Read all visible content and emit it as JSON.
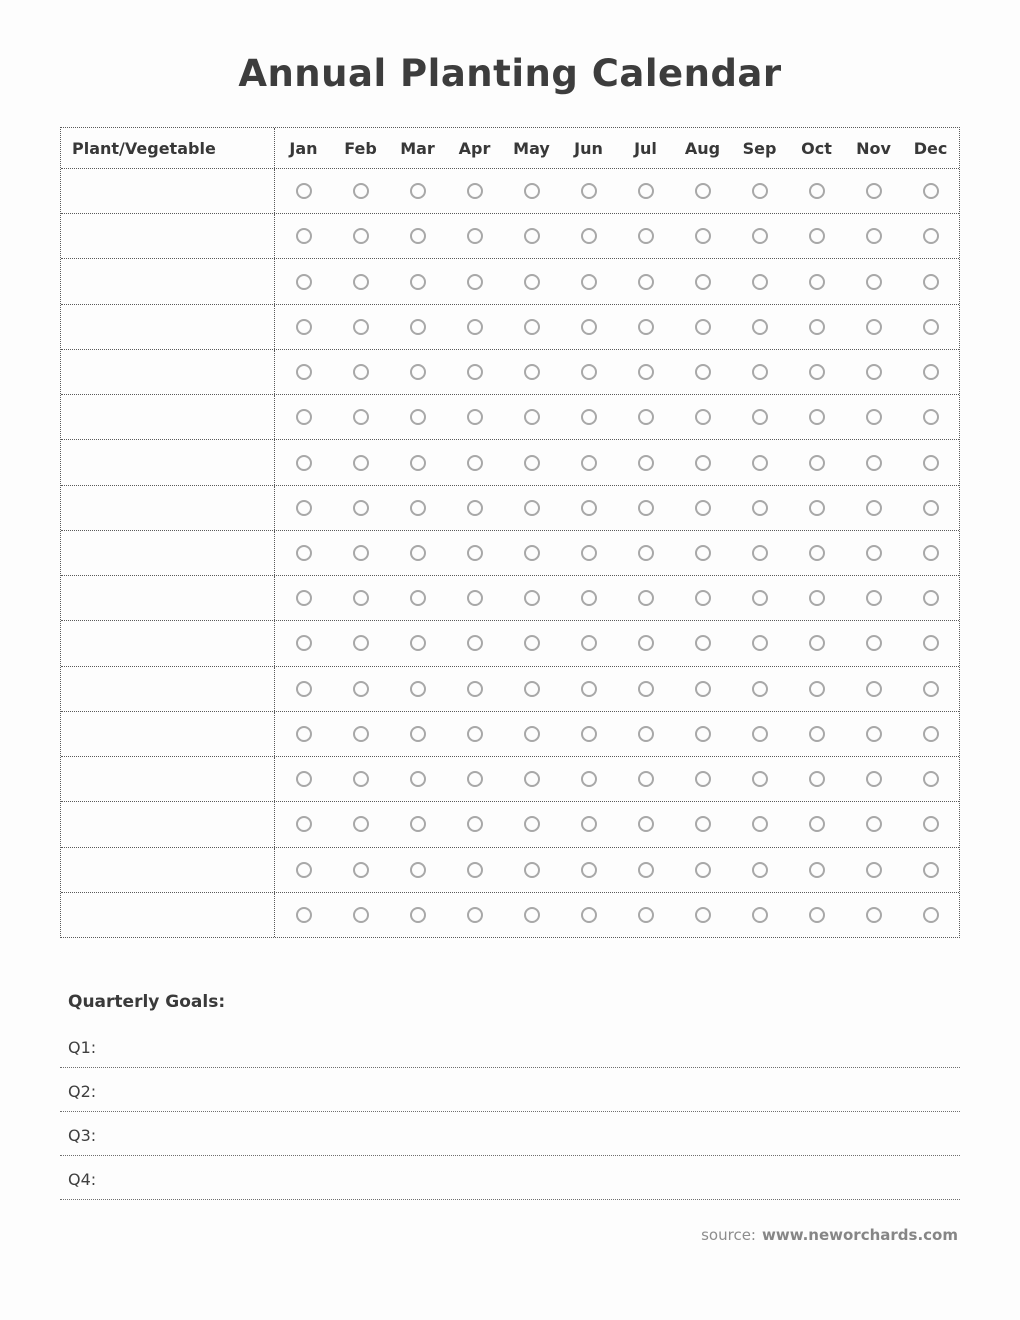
{
  "page": {
    "title": "Annual Planting Calendar"
  },
  "table": {
    "first_column_header": "Plant/Vegetable",
    "months": [
      "Jan",
      "Feb",
      "Mar",
      "Apr",
      "May",
      "Jun",
      "Jul",
      "Aug",
      "Sep",
      "Oct",
      "Nov",
      "Dec"
    ],
    "row_count": 17,
    "rows": [],
    "cell_marker": "empty-circle"
  },
  "goals": {
    "heading": "Quarterly Goals:",
    "items": [
      {
        "label": "Q1:",
        "value": ""
      },
      {
        "label": "Q2:",
        "value": ""
      },
      {
        "label": "Q3:",
        "value": ""
      },
      {
        "label": "Q4:",
        "value": ""
      }
    ]
  },
  "footer": {
    "source_label": "source:",
    "source_url": "www.neworchards.com"
  },
  "colors": {
    "background": "#fdfdfd",
    "text": "#3d3d3d",
    "muted_text": "#8d8d8d",
    "circle_border": "#a8a8a8",
    "table_border": "#5a5a5a",
    "goal_line": "#6f6f6f"
  }
}
